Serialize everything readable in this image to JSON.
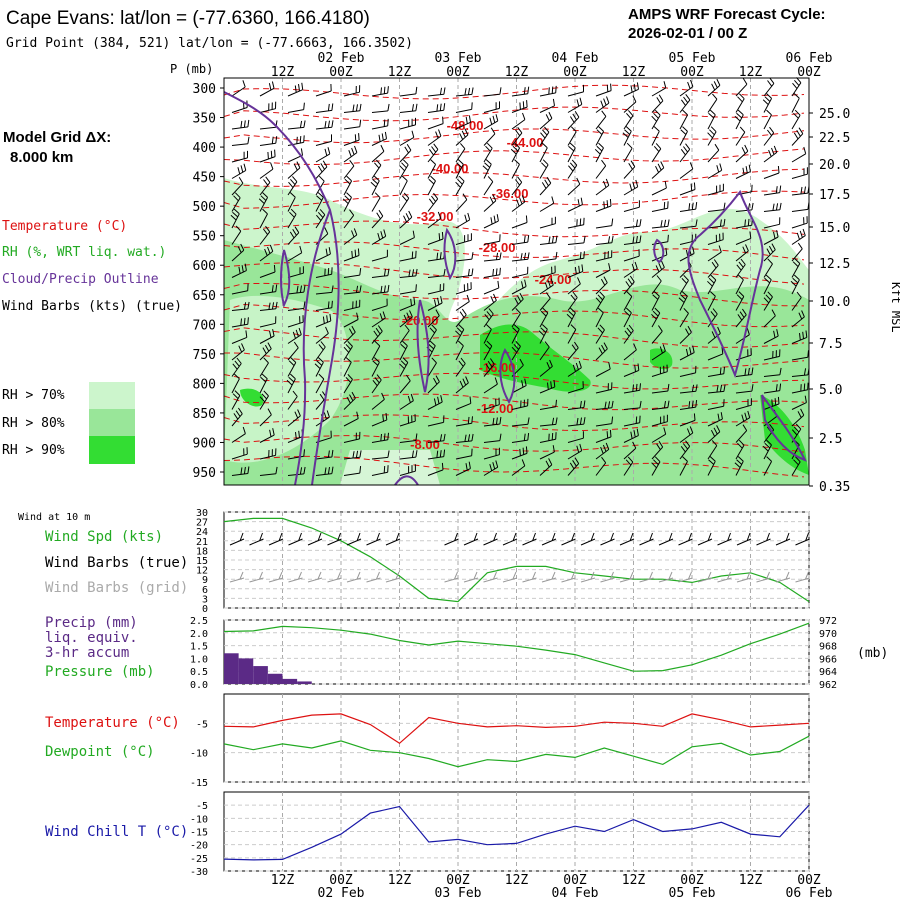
{
  "header": {
    "station": "Cape Evans:  lat/lon = (-77.6360, 166.4180)",
    "grid_point": "Grid Point (384, 521) lat/lon = (-77.6663, 166.3502)",
    "cycle_label": "AMPS WRF Forecast Cycle:",
    "cycle_time": "2026-02-01 / 00  Z"
  },
  "time_axis": {
    "hour_labels": [
      "12Z",
      "00Z",
      "12Z",
      "00Z",
      "12Z",
      "00Z",
      "12Z",
      "00Z",
      "12Z",
      "00Z"
    ],
    "date_labels": [
      "02 Feb",
      "03 Feb",
      "04 Feb",
      "05 Feb",
      "06 Feb"
    ]
  },
  "left_legend": {
    "model_grid": "Model Grid ΔX:",
    "grid_dx": "8.000 km",
    "temperature": "Temperature (°C)",
    "rh": "RH (%, WRT liq. wat.)",
    "cloud": "Cloud/Precip Outline",
    "wind_barbs": "Wind Barbs (kts) (true)",
    "rh70": "RH > 70%",
    "rh80": "RH > 80%",
    "rh90": "RH > 90%"
  },
  "colors": {
    "temperature": "#dd1111",
    "rh": "#22aa22",
    "cloud": "#663399",
    "wind": "#000000",
    "wind_grid": "#999999",
    "precip": "#5b2a86",
    "wind_chill": "#1a1aa8",
    "rh70": "#ccf5cc",
    "rh80": "#99e699",
    "rh90": "#33dd33",
    "grid": "#aaaaaa"
  },
  "chart_data": [
    {
      "type": "contour",
      "id": "cross_section",
      "ylabel": "P (mb)",
      "right_axis_label": "Kft MSL",
      "pressure_levels": [
        300,
        350,
        400,
        450,
        500,
        550,
        600,
        650,
        700,
        750,
        800,
        850,
        900,
        950
      ],
      "kft_labels": [
        "25.0",
        "22.5",
        "20.0",
        "17.5",
        "15.0",
        "12.5",
        "10.0",
        "7.5",
        "5.0",
        "2.5",
        "0.35"
      ],
      "temperature_contour_labels": [
        "-48.00",
        "-44.00",
        "-40.00",
        "-36.00",
        "-32.00",
        "-28.00",
        "-24.00",
        "-20.00",
        "-16.00",
        "-12.00",
        "-8.00"
      ]
    },
    {
      "type": "line",
      "id": "wind10m",
      "title": "Wind at 10 m",
      "series_labels": [
        "Wind Spd (kts)",
        "Wind Barbs (true)",
        "Wind Barbs (grid)"
      ],
      "ylim": [
        0,
        30
      ],
      "yticks": [
        0,
        3,
        6,
        9,
        12,
        15,
        18,
        21,
        24,
        27,
        30
      ],
      "x_hours": [
        0,
        6,
        12,
        18,
        24,
        30,
        36,
        42,
        48,
        54,
        60,
        66,
        72,
        78,
        84,
        90,
        96,
        102,
        108,
        114,
        120
      ],
      "values": [
        27,
        28,
        28,
        25,
        21,
        16,
        10,
        3,
        2,
        11,
        13,
        13,
        11,
        10,
        9,
        9,
        8,
        10,
        11,
        8,
        2
      ]
    },
    {
      "type": "bar+line",
      "id": "precip_pressure",
      "series_labels": [
        "Precip (mm)",
        "liq. equiv.",
        "3-hr accum",
        "Pressure (mb)"
      ],
      "precip_ylim": [
        0,
        2.5
      ],
      "precip_yticks": [
        "0.0",
        "0.5",
        "1.0",
        "1.5",
        "2.0",
        "2.5"
      ],
      "pressure_ylim": [
        962,
        972
      ],
      "pressure_yticks": [
        "962",
        "964",
        "966",
        "968",
        "970",
        "972"
      ],
      "pressure_unit": "(mb)",
      "precip_x_hours": [
        0,
        3,
        6,
        9,
        12,
        15,
        18
      ],
      "precip_values": [
        1.2,
        1.0,
        0.7,
        0.4,
        0.2,
        0.1,
        0.0
      ],
      "pressure_x_hours": [
        0,
        6,
        12,
        18,
        24,
        30,
        36,
        42,
        48,
        54,
        60,
        66,
        72,
        78,
        84,
        90,
        96,
        102,
        108,
        114,
        120
      ],
      "pressure_values": [
        970.2,
        970.3,
        971,
        970.8,
        970.4,
        969.8,
        968.8,
        968.1,
        968.7,
        968.3,
        967.9,
        967.3,
        966.6,
        965.3,
        964.0,
        964.1,
        965.0,
        966.5,
        968.3,
        969.8,
        971.5
      ]
    },
    {
      "type": "line",
      "id": "temp_dew",
      "series_labels": [
        "Temperature (°C)",
        "Dewpoint (°C)"
      ],
      "ylim": [
        -15,
        0
      ],
      "yticks": [
        -5,
        -10,
        -15
      ],
      "x_hours": [
        0,
        6,
        12,
        18,
        24,
        30,
        36,
        42,
        48,
        54,
        60,
        66,
        72,
        78,
        84,
        90,
        96,
        102,
        108,
        114,
        120
      ],
      "temperature": [
        -5.5,
        -5.6,
        -4.5,
        -3.6,
        -3.4,
        -5.2,
        -8.4,
        -4.0,
        -5.0,
        -5.6,
        -5.4,
        -5.7,
        -5.5,
        -4.8,
        -5.0,
        -5.5,
        -3.4,
        -4.4,
        -5.6,
        -5.3,
        -5.0
      ],
      "dewpoint": [
        -8.5,
        -9.5,
        -8.5,
        -9.2,
        -8.0,
        -9.6,
        -10.0,
        -11.0,
        -12.4,
        -11.2,
        -11.5,
        -10.3,
        -10.8,
        -9.2,
        -10.6,
        -12.0,
        -9.0,
        -8.4,
        -10.4,
        -9.8,
        -7.2
      ]
    },
    {
      "type": "line",
      "id": "wind_chill",
      "series_labels": [
        "Wind Chill T (°C)"
      ],
      "ylim": [
        -30,
        0
      ],
      "yticks": [
        -5,
        -10,
        -15,
        -20,
        -25,
        -30
      ],
      "x_hours": [
        0,
        6,
        12,
        18,
        24,
        30,
        36,
        42,
        48,
        54,
        60,
        66,
        72,
        78,
        84,
        90,
        96,
        102,
        108,
        114,
        120
      ],
      "values": [
        -25.5,
        -25.8,
        -25.6,
        -21,
        -16,
        -8,
        -5.5,
        -19,
        -18,
        -20,
        -19.5,
        -16,
        -13,
        -15,
        -10.5,
        -15,
        -14,
        -11.5,
        -16,
        -17,
        -5
      ]
    }
  ]
}
